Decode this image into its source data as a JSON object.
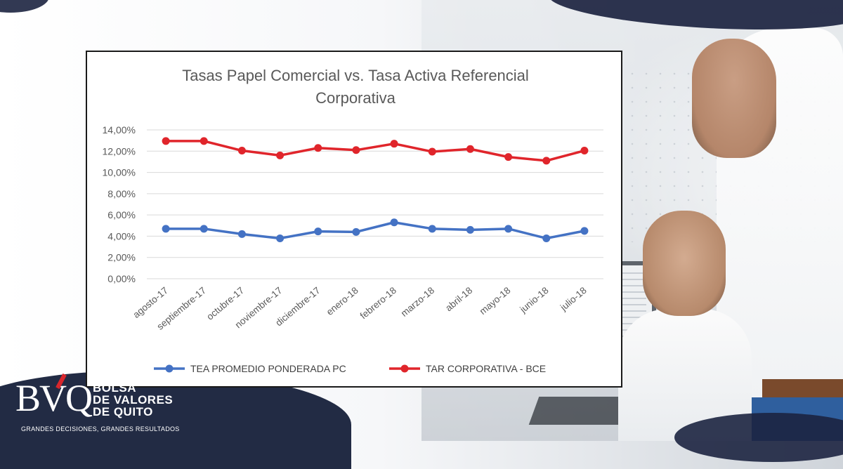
{
  "brand": {
    "logo_mark": "BVQ",
    "name_lines": [
      "BOLSA",
      "DE VALORES",
      "DE QUITO"
    ],
    "tagline": "GRANDES DECISIONES, GRANDES RESULTADOS"
  },
  "chart_data": {
    "type": "line",
    "title_lines": [
      "Tasas Papel Comercial vs. Tasa Activa Referencial",
      "Corporativa"
    ],
    "categories": [
      "agosto-17",
      "septiembre-17",
      "octubre-17",
      "noviembre-17",
      "diciembre-17",
      "enero-18",
      "febrero-18",
      "marzo-18",
      "abril-18",
      "mayo-18",
      "junio-18",
      "julio-18"
    ],
    "y_ticks": [
      "0,00%",
      "2,00%",
      "4,00%",
      "6,00%",
      "8,00%",
      "10,00%",
      "12,00%",
      "14,00%"
    ],
    "ylim": [
      0,
      14
    ],
    "grid": true,
    "legend_position": "bottom",
    "series": [
      {
        "name": "TEA PROMEDIO PONDERADA PC",
        "color": "#4472c4",
        "values": [
          4.7,
          4.7,
          4.2,
          3.8,
          4.45,
          4.4,
          5.3,
          4.7,
          4.6,
          4.7,
          3.8,
          4.5
        ]
      },
      {
        "name": "TAR CORPORATIVA - BCE",
        "color": "#e0252b",
        "values": [
          12.95,
          12.95,
          12.05,
          11.6,
          12.3,
          12.1,
          12.7,
          11.95,
          12.2,
          11.45,
          11.1,
          12.05
        ]
      }
    ]
  }
}
